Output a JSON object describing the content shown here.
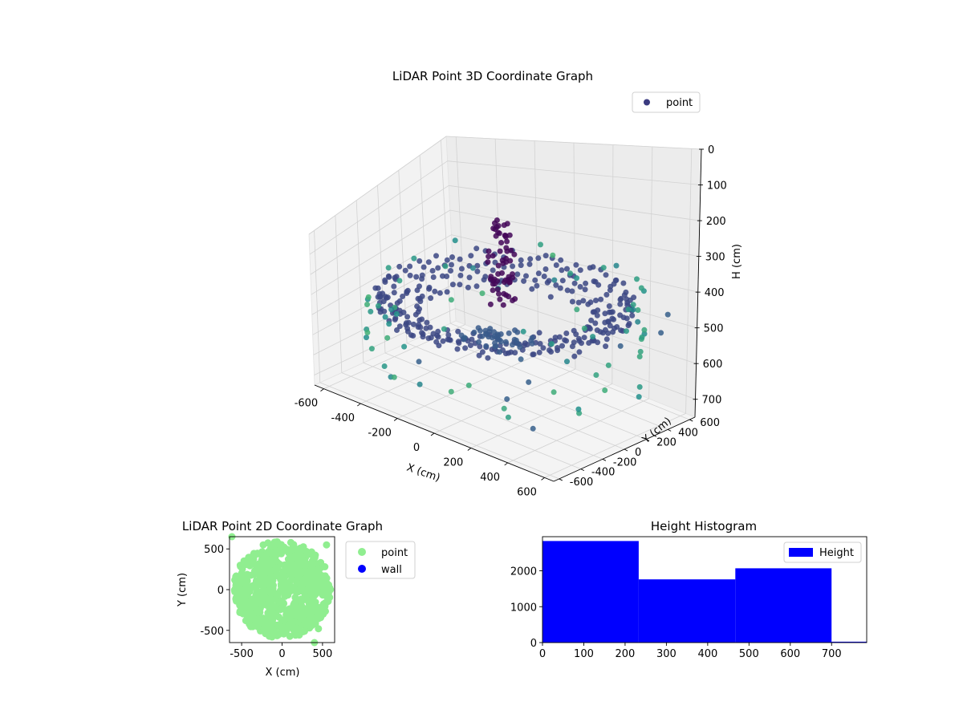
{
  "chart_data": [
    {
      "type": "scatter",
      "projection": "3d",
      "title": "LiDAR Point 3D Coordinate Graph",
      "xlabel": "X (cm)",
      "ylabel": "Y (cm)",
      "zlabel": "H (cm)",
      "xlim": [
        -650,
        650
      ],
      "ylim": [
        -650,
        650
      ],
      "zlim": [
        0,
        750
      ],
      "z_inverted": true,
      "x_ticks": [
        "-600",
        "-400",
        "-200",
        "0",
        "200",
        "400",
        "600"
      ],
      "y_ticks": [
        "-600",
        "-400",
        "-200",
        "0",
        "200",
        "400",
        "600"
      ],
      "z_ticks": [
        "0",
        "100",
        "200",
        "300",
        "400",
        "500",
        "600",
        "700"
      ],
      "grid": true,
      "legend": "top-right",
      "colormap": [
        "#440154",
        "#3b528b",
        "#21918c",
        "#5ec962",
        "#fde725"
      ],
      "series": [
        {
          "name": "point",
          "color": "#3b3b80",
          "rings": [
            {
              "r": 580,
              "z": 420,
              "n": 90
            },
            {
              "r": 500,
              "z": 430,
              "n": 80
            },
            {
              "r": 420,
              "z": 440,
              "n": 70
            },
            {
              "r": 580,
              "z": 380,
              "n": 90
            }
          ],
          "wall_points_z": 330,
          "spike_center": [
            -50,
            50
          ],
          "spike_z_range": [
            120,
            420
          ],
          "floor_blob": {
            "cx": 0,
            "cy": -50,
            "r": 180,
            "z": 520
          },
          "outliers": [
            [
              300,
              -500,
              580
            ],
            [
              500,
              -600,
              620
            ],
            [
              -200,
              -450,
              560
            ],
            [
              300,
              -300,
              560
            ],
            [
              500,
              200,
              500
            ],
            [
              600,
              400,
              480
            ],
            [
              550,
              550,
              460
            ],
            [
              200,
              -200,
              520
            ],
            [
              -100,
              -200,
              500
            ]
          ]
        }
      ]
    },
    {
      "type": "scatter",
      "title": "LiDAR Point 2D Coordinate Graph",
      "xlabel": "X (cm)",
      "ylabel": "Y (cm)",
      "xlim": [
        -650,
        650
      ],
      "ylim": [
        -650,
        650
      ],
      "x_ticks": [
        "-500",
        "0",
        "500"
      ],
      "y_ticks": [
        "-500",
        "0",
        "500"
      ],
      "legend": "outside-right",
      "series": [
        {
          "name": "point",
          "color": "#90ee90"
        },
        {
          "name": "wall",
          "color": "#0000ff"
        }
      ],
      "outliers": [
        [
          450,
          -480
        ],
        [
          400,
          -650
        ],
        [
          -620,
          650
        ],
        [
          550,
          550
        ]
      ]
    },
    {
      "type": "bar",
      "title": "Height Histogram",
      "xlabel": "",
      "ylabel": "",
      "xlim": [
        0,
        785
      ],
      "ylim": [
        0,
        2950
      ],
      "x_ticks": [
        "0",
        "100",
        "200",
        "300",
        "400",
        "500",
        "600",
        "700"
      ],
      "y_ticks": [
        "0",
        "1000",
        "2000"
      ],
      "legend": "top-right",
      "series": [
        {
          "name": "Height",
          "color": "#0000ff"
        }
      ],
      "bins": [
        {
          "start": 0,
          "end": 233,
          "count": 2830
        },
        {
          "start": 233,
          "end": 467,
          "count": 1760
        },
        {
          "start": 467,
          "end": 700,
          "count": 2070
        },
        {
          "start": 700,
          "end": 785,
          "count": 25
        }
      ]
    }
  ]
}
